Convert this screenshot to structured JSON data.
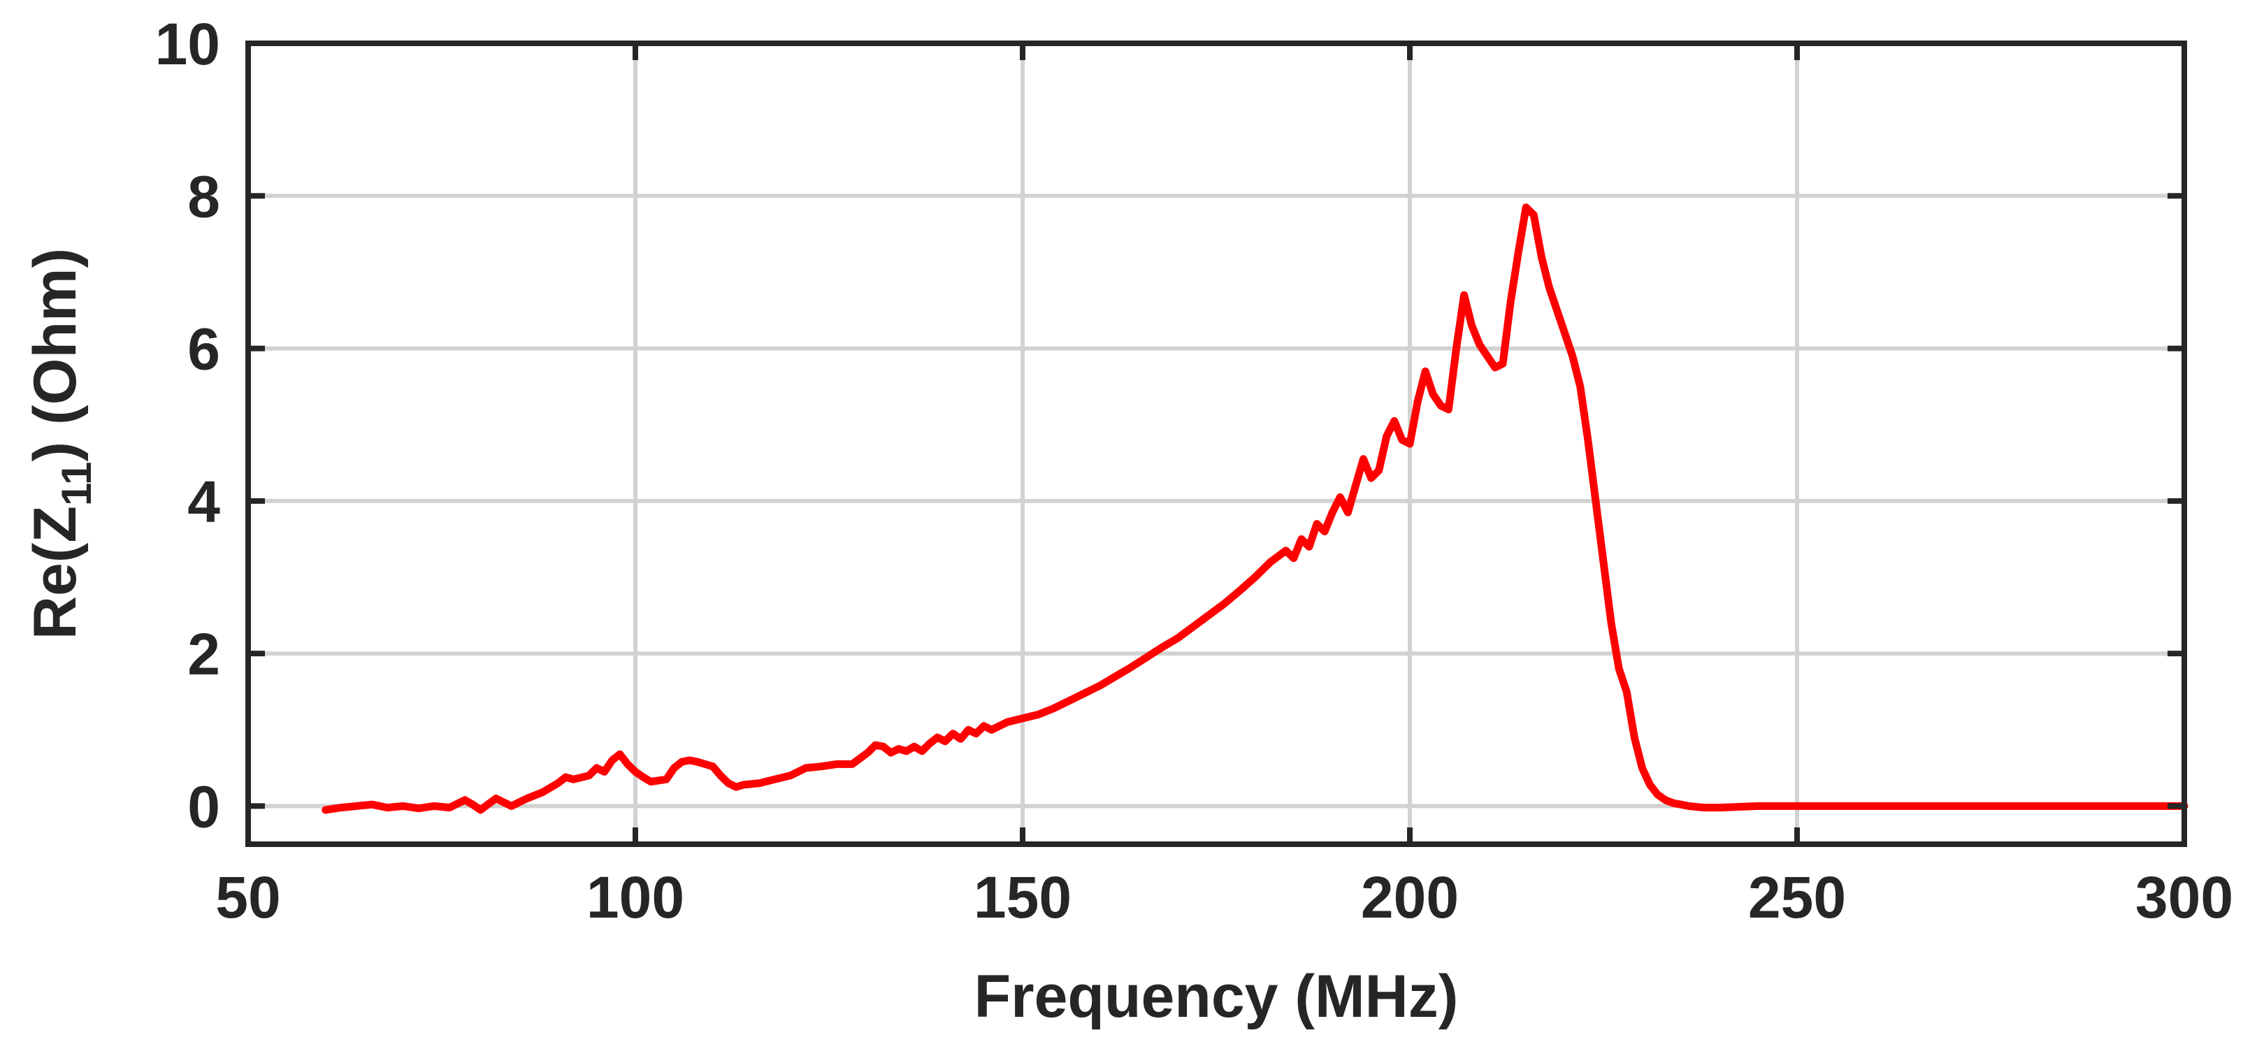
{
  "chart_data": {
    "type": "line",
    "title": "",
    "xlabel": "Frequency (MHz)",
    "ylabel_parts": {
      "prefix": "Re(Z",
      "subscript": "11",
      "suffix": ") (Ohm)"
    },
    "xlim": [
      50,
      300
    ],
    "ylim": [
      -0.5,
      10
    ],
    "xticks": [
      50,
      100,
      150,
      200,
      250,
      300
    ],
    "yticks": [
      0,
      2,
      4,
      6,
      8,
      10
    ],
    "grid": true,
    "line_color": "#ff0000",
    "series": [
      {
        "x": [
          60,
          62,
          64,
          66,
          68,
          70,
          72,
          74,
          76,
          78,
          79,
          80,
          82,
          83,
          84,
          86,
          88,
          90,
          91,
          92,
          94,
          95,
          96,
          97,
          98,
          99,
          100,
          101,
          102,
          104,
          105,
          106,
          107,
          108,
          109,
          110,
          111,
          112,
          113,
          114,
          116,
          118,
          120,
          122,
          124,
          126,
          128,
          130,
          131,
          132,
          133,
          134,
          135,
          136,
          137,
          138,
          139,
          140,
          141,
          142,
          143,
          144,
          145,
          146,
          147,
          148,
          150,
          152,
          154,
          156,
          158,
          160,
          162,
          164,
          166,
          168,
          170,
          172,
          174,
          176,
          178,
          180,
          182,
          184,
          185,
          186,
          187,
          188,
          189,
          190,
          191,
          192,
          193,
          194,
          195,
          196,
          197,
          198,
          199,
          200,
          201,
          202,
          203,
          204,
          205,
          206,
          207,
          208,
          209,
          210,
          211,
          212,
          213,
          214,
          215,
          216,
          217,
          218,
          219,
          220,
          221,
          222,
          223,
          224,
          225,
          226,
          227,
          228,
          229,
          230,
          231,
          232,
          233,
          234,
          235,
          236,
          238,
          240,
          245,
          250,
          255,
          260,
          265,
          270,
          275,
          280,
          285,
          290,
          295,
          300
        ],
        "y": [
          -0.05,
          -0.02,
          0.0,
          0.02,
          -0.02,
          0.0,
          -0.03,
          0.0,
          -0.02,
          0.08,
          0.02,
          -0.05,
          0.1,
          0.05,
          0.0,
          0.1,
          0.18,
          0.3,
          0.38,
          0.35,
          0.4,
          0.5,
          0.45,
          0.6,
          0.68,
          0.55,
          0.45,
          0.38,
          0.32,
          0.35,
          0.5,
          0.58,
          0.6,
          0.58,
          0.55,
          0.52,
          0.4,
          0.3,
          0.25,
          0.28,
          0.3,
          0.35,
          0.4,
          0.5,
          0.52,
          0.55,
          0.55,
          0.7,
          0.8,
          0.78,
          0.7,
          0.75,
          0.72,
          0.78,
          0.72,
          0.82,
          0.9,
          0.85,
          0.95,
          0.88,
          1.0,
          0.95,
          1.05,
          1.0,
          1.05,
          1.1,
          1.15,
          1.2,
          1.28,
          1.38,
          1.48,
          1.58,
          1.7,
          1.82,
          1.95,
          2.08,
          2.2,
          2.35,
          2.5,
          2.65,
          2.82,
          3.0,
          3.2,
          3.35,
          3.25,
          3.5,
          3.4,
          3.7,
          3.6,
          3.85,
          4.05,
          3.85,
          4.2,
          4.55,
          4.3,
          4.4,
          4.85,
          5.05,
          4.8,
          4.75,
          5.3,
          5.7,
          5.4,
          5.25,
          5.2,
          6.0,
          6.7,
          6.3,
          6.05,
          5.9,
          5.75,
          5.8,
          6.6,
          7.25,
          7.85,
          7.75,
          7.2,
          6.8,
          6.5,
          6.2,
          5.9,
          5.5,
          4.8,
          4.0,
          3.2,
          2.4,
          1.8,
          1.5,
          0.9,
          0.5,
          0.28,
          0.15,
          0.08,
          0.04,
          0.02,
          0.0,
          -0.02,
          -0.02,
          0.0,
          0.0,
          0.0,
          0.0,
          0.0,
          0.0,
          0.0,
          0.0,
          0.0,
          0.0,
          0.0,
          0.0
        ]
      }
    ]
  }
}
